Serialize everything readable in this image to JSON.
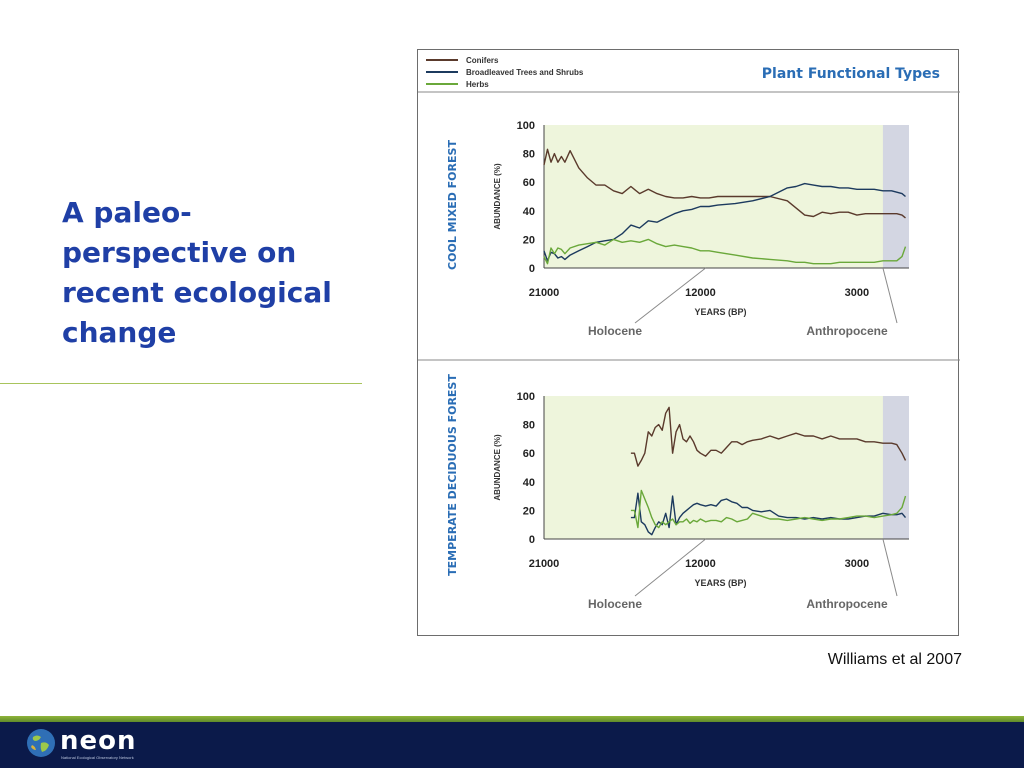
{
  "slide": {
    "title": "A paleo-perspective on recent ecological change",
    "citation": "Williams et al 2007"
  },
  "footer": {
    "logo_text": "neon",
    "logo_subtext": "National Ecological Observatory Network"
  },
  "figure": {
    "header_title": "Plant Functional Types",
    "legend": [
      {
        "name": "Conifers",
        "color": "#5a3a2c"
      },
      {
        "name": "Broadleaved Trees and Shrubs",
        "color": "#1c3a5e"
      },
      {
        "name": "Herbs",
        "color": "#6aa83a"
      }
    ],
    "colors": {
      "holocene_shade": "#eef5dc",
      "anthropocene_shade": "#d3d6e2",
      "title_blue": "#2a6db5"
    }
  },
  "chart_data": [
    {
      "type": "line",
      "title": "COOL MIXED FOREST",
      "xlabel": "YEARS (BP)",
      "ylabel": "ABUNDANCE (%)",
      "ylim": [
        0,
        100
      ],
      "xlim": [
        21000,
        0
      ],
      "x_ticks": [
        "21000",
        "12000",
        "3000"
      ],
      "y_ticks": [
        "0",
        "20",
        "40",
        "60",
        "80",
        "100"
      ],
      "annotations": [
        {
          "text": "Holocene",
          "x": 11700
        },
        {
          "text": "Anthropocene",
          "x": 1500
        }
      ],
      "series": [
        {
          "name": "Conifers",
          "color": "#5a3a2c",
          "x": [
            21000,
            20800,
            20600,
            20400,
            20200,
            20000,
            19800,
            19500,
            19000,
            18500,
            18000,
            17500,
            17000,
            16500,
            16000,
            15500,
            15000,
            14500,
            14000,
            13500,
            13000,
            12500,
            12000,
            11500,
            11000,
            10000,
            9000,
            8000,
            7000,
            6500,
            6000,
            5500,
            5000,
            4500,
            4000,
            3500,
            3000,
            2500,
            2000,
            1500,
            1000,
            700,
            400,
            200
          ],
          "values": [
            72,
            83,
            74,
            80,
            74,
            78,
            74,
            82,
            70,
            63,
            58,
            58,
            54,
            52,
            57,
            52,
            55,
            52,
            50,
            49,
            49,
            50,
            49,
            49,
            50,
            50,
            50,
            50,
            47,
            42,
            37,
            36,
            39,
            38,
            39,
            39,
            37,
            38,
            38,
            38,
            38,
            38,
            37,
            35
          ]
        },
        {
          "name": "Broadleaved Trees and Shrubs",
          "color": "#1c3a5e",
          "x": [
            21000,
            20800,
            20600,
            20400,
            20200,
            20000,
            19800,
            19500,
            19000,
            18500,
            18000,
            17500,
            17000,
            16500,
            16000,
            15500,
            15000,
            14500,
            14000,
            13500,
            13000,
            12500,
            12000,
            11500,
            11000,
            10000,
            9000,
            8000,
            7000,
            6500,
            6000,
            5500,
            5000,
            4500,
            4000,
            3500,
            3000,
            2500,
            2000,
            1500,
            1000,
            700,
            400,
            200
          ],
          "values": [
            12,
            5,
            11,
            10,
            7,
            8,
            6,
            9,
            12,
            15,
            18,
            19,
            20,
            24,
            30,
            28,
            33,
            32,
            35,
            38,
            40,
            41,
            43,
            43,
            44,
            45,
            47,
            50,
            56,
            57,
            59,
            58,
            57,
            57,
            56,
            56,
            55,
            55,
            55,
            54,
            54,
            53,
            52,
            50
          ]
        },
        {
          "name": "Herbs",
          "color": "#6aa83a",
          "x": [
            21000,
            20800,
            20600,
            20400,
            20200,
            20000,
            19800,
            19500,
            19000,
            18500,
            18000,
            17500,
            17000,
            16500,
            16000,
            15500,
            15000,
            14500,
            14000,
            13500,
            13000,
            12500,
            12000,
            11500,
            11000,
            10000,
            9000,
            8000,
            7000,
            6500,
            6000,
            5500,
            5000,
            4500,
            4000,
            3500,
            3000,
            2500,
            2000,
            1500,
            1000,
            700,
            400,
            200
          ],
          "values": [
            8,
            3,
            14,
            10,
            14,
            13,
            10,
            14,
            16,
            17,
            18,
            16,
            20,
            18,
            19,
            18,
            20,
            17,
            15,
            16,
            15,
            14,
            12,
            12,
            11,
            9,
            7,
            6,
            5,
            4,
            4,
            3,
            3,
            3,
            4,
            4,
            4,
            4,
            4,
            5,
            5,
            5,
            8,
            15
          ]
        }
      ]
    },
    {
      "type": "line",
      "title": "TEMPERATE DECIDUOUS FOREST",
      "xlabel": "YEARS (BP)",
      "ylabel": "ABUNDANCE (%)",
      "ylim": [
        0,
        100
      ],
      "xlim": [
        21000,
        0
      ],
      "x_ticks": [
        "21000",
        "12000",
        "3000"
      ],
      "y_ticks": [
        "0",
        "20",
        "40",
        "60",
        "80",
        "100"
      ],
      "annotations": [
        {
          "text": "Holocene",
          "x": 11700
        },
        {
          "text": "Anthropocene",
          "x": 1500
        }
      ],
      "series": [
        {
          "name": "Conifers",
          "color": "#5a3a2c",
          "x": [
            16000,
            15800,
            15600,
            15400,
            15200,
            15000,
            14800,
            14600,
            14400,
            14200,
            14000,
            13800,
            13600,
            13400,
            13200,
            13000,
            12800,
            12600,
            12400,
            12200,
            12000,
            11700,
            11400,
            11100,
            10800,
            10500,
            10200,
            9900,
            9600,
            9300,
            9000,
            8500,
            8000,
            7500,
            7000,
            6500,
            6000,
            5500,
            5000,
            4500,
            4000,
            3500,
            3000,
            2500,
            2000,
            1500,
            1000,
            700,
            400,
            200
          ],
          "values": [
            60,
            60,
            51,
            55,
            60,
            75,
            72,
            78,
            80,
            76,
            88,
            92,
            60,
            75,
            80,
            70,
            68,
            72,
            68,
            62,
            60,
            58,
            62,
            62,
            60,
            64,
            68,
            68,
            66,
            68,
            69,
            70,
            72,
            70,
            72,
            74,
            72,
            72,
            70,
            72,
            70,
            70,
            70,
            68,
            68,
            67,
            67,
            66,
            60,
            55
          ]
        },
        {
          "name": "Broadleaved Trees and Shrubs",
          "color": "#1c3a5e",
          "x": [
            16000,
            15800,
            15600,
            15400,
            15200,
            15000,
            14800,
            14600,
            14400,
            14200,
            14000,
            13800,
            13600,
            13400,
            13200,
            13000,
            12800,
            12600,
            12400,
            12200,
            12000,
            11700,
            11400,
            11100,
            10800,
            10500,
            10200,
            9900,
            9600,
            9300,
            9000,
            8500,
            8000,
            7500,
            7000,
            6500,
            6000,
            5500,
            5000,
            4500,
            4000,
            3500,
            3000,
            2500,
            2000,
            1500,
            1000,
            700,
            400,
            200
          ],
          "values": [
            15,
            15,
            32,
            12,
            10,
            5,
            3,
            8,
            12,
            10,
            18,
            8,
            30,
            10,
            15,
            18,
            20,
            22,
            24,
            25,
            24,
            23,
            24,
            23,
            27,
            28,
            26,
            25,
            22,
            22,
            20,
            19,
            20,
            16,
            15,
            15,
            14,
            15,
            14,
            15,
            14,
            14,
            15,
            16,
            16,
            18,
            17,
            17,
            18,
            15
          ]
        },
        {
          "name": "Herbs",
          "color": "#6aa83a",
          "x": [
            16000,
            15800,
            15600,
            15400,
            15200,
            15000,
            14800,
            14600,
            14400,
            14200,
            14000,
            13800,
            13600,
            13400,
            13200,
            13000,
            12800,
            12600,
            12400,
            12200,
            12000,
            11700,
            11400,
            11100,
            10800,
            10500,
            10200,
            9900,
            9600,
            9300,
            9000,
            8500,
            8000,
            7500,
            7000,
            6500,
            6000,
            5500,
            5000,
            4500,
            4000,
            3500,
            3000,
            2500,
            2000,
            1500,
            1000,
            700,
            400,
            200
          ],
          "values": [
            20,
            20,
            8,
            34,
            28,
            22,
            15,
            10,
            8,
            12,
            10,
            12,
            14,
            10,
            12,
            12,
            14,
            11,
            13,
            12,
            14,
            12,
            13,
            13,
            12,
            15,
            14,
            12,
            13,
            14,
            18,
            16,
            14,
            14,
            13,
            14,
            15,
            14,
            13,
            14,
            14,
            15,
            16,
            16,
            15,
            16,
            17,
            18,
            22,
            30
          ]
        }
      ]
    }
  ]
}
